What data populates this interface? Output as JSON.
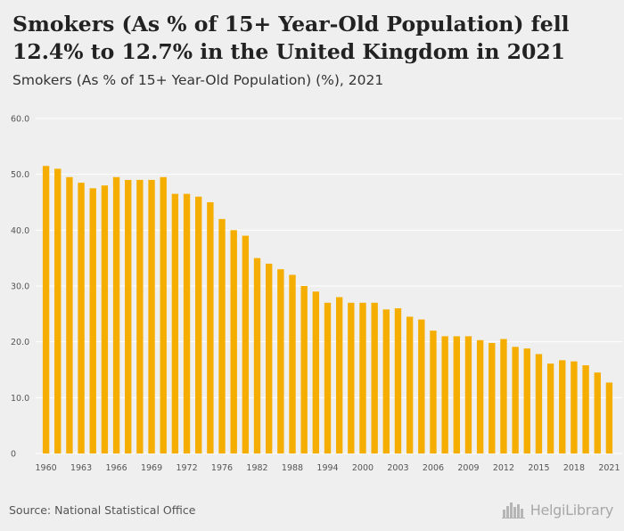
{
  "title": "Smokers (As % of 15+ Year-Old Population) fell 12.4% to 12.7% in the United Kingdom in 2021",
  "subtitle": "Smokers (As % of 15+ Year-Old Population) (%), 2021",
  "source": "Source: National Statistical Office",
  "logo": {
    "text": "HelgiLibrary",
    "icon": "city-skyline-icon"
  },
  "colors": {
    "bar": "#f5ad00",
    "background": "#efefef",
    "grid": "#ffffff"
  },
  "chart_data": {
    "type": "bar",
    "title": "Smokers (As % of 15+ Year-Old Population) (%), 2021",
    "xlabel": "",
    "ylabel": "",
    "ylim": [
      0,
      60
    ],
    "y_ticks": [
      "0",
      "10.0",
      "20.0",
      "30.0",
      "40.0",
      "50.0",
      "60.0"
    ],
    "grid": true,
    "legend": "none",
    "x_tick_labels": [
      "1960",
      "1963",
      "1966",
      "1969",
      "1972",
      "1976",
      "1982",
      "1988",
      "1994",
      "2000",
      "2003",
      "2006",
      "2009",
      "2012",
      "2015",
      "2018",
      "2021"
    ],
    "categories": [
      "1960",
      "1961",
      "1962",
      "1963",
      "1964",
      "1965",
      "1966",
      "1967",
      "1968",
      "1969",
      "1970",
      "1971",
      "1972",
      "1973",
      "1974",
      "1976",
      "1978",
      "1980",
      "1982",
      "1984",
      "1986",
      "1988",
      "1990",
      "1992",
      "1994",
      "1996",
      "1998",
      "2000",
      "2001",
      "2002",
      "2003",
      "2004",
      "2005",
      "2006",
      "2007",
      "2008",
      "2009",
      "2010",
      "2011",
      "2012",
      "2013",
      "2014",
      "2015",
      "2016",
      "2017",
      "2018",
      "2019",
      "2020",
      "2021"
    ],
    "values": [
      51.5,
      51.0,
      49.5,
      48.5,
      47.5,
      48.0,
      49.5,
      49.0,
      49.0,
      49.0,
      49.5,
      46.5,
      46.5,
      46.0,
      45.0,
      42.0,
      40.0,
      39.0,
      35.0,
      34.0,
      33.0,
      32.0,
      30.0,
      29.0,
      27.0,
      28.0,
      27.0,
      27.0,
      27.0,
      25.8,
      26.0,
      24.5,
      24.0,
      22.0,
      21.0,
      21.0,
      21.0,
      20.3,
      19.8,
      20.5,
      19.1,
      18.8,
      17.8,
      16.1,
      16.7,
      16.5,
      15.8,
      14.5,
      12.7
    ]
  }
}
